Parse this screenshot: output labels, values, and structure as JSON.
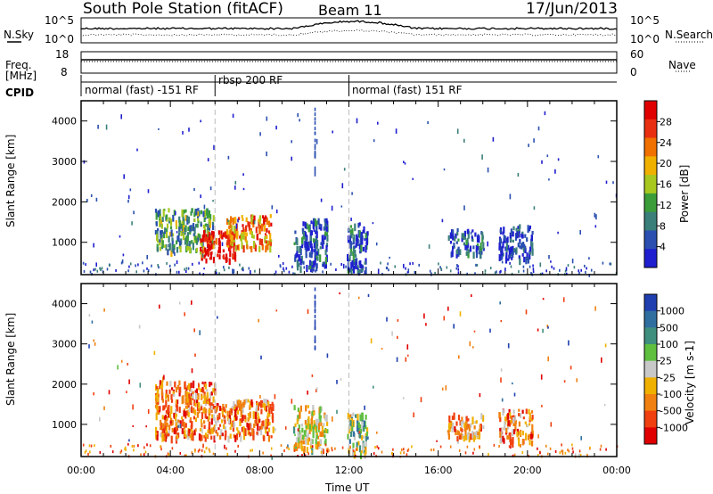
{
  "header": {
    "station": "South Pole Station (fitACF)",
    "beam": "Beam 11",
    "date": "17/Jun/2013"
  },
  "summary": {
    "nsky_label": "N.Sky",
    "nsearch_label": "N.Search",
    "freq_label": "Freq.",
    "freq_unit": "[MHz]",
    "nave_label": "Nave",
    "cpid_label": "CPID",
    "noise_ticks_left": [
      "10^5",
      "10^0"
    ],
    "noise_ticks_right": [
      "10^5",
      "10^0"
    ],
    "freq_ticks": [
      "18",
      "8"
    ],
    "nave_ticks": [
      "60",
      "0"
    ],
    "cpid_segments": [
      {
        "start": 0,
        "label": "normal (fast) -151 RF"
      },
      {
        "start": 6,
        "label": "rbsp 200 RF"
      },
      {
        "start": 12,
        "label": "normal (fast) 151 RF"
      }
    ]
  },
  "colors": {
    "power_scale": [
      "#1f1fd0",
      "#2a4fb0",
      "#3a7f7a",
      "#3a9d3a",
      "#a8c820",
      "#f0b000",
      "#f07000",
      "#e83010",
      "#e00000"
    ],
    "velocity_scale": [
      "#1f3fb0",
      "#2f6fa0",
      "#3f8f7f",
      "#5fbf3f",
      "#c8c8c8",
      "#f0b000",
      "#f08010",
      "#f04010",
      "#e00000"
    ]
  },
  "chart_data": [
    {
      "type": "heatmap",
      "name": "power",
      "ylabel": "Slant Range [km]",
      "xlabel": "Time UT",
      "x_ticks": [
        "00:00",
        "04:00",
        "08:00",
        "12:00",
        "16:00",
        "20:00",
        "00:00"
      ],
      "y_ticks": [
        1000,
        2000,
        3000,
        4000
      ],
      "ylim": [
        200,
        4500
      ],
      "xlim_hours": [
        0,
        24
      ],
      "colorbar_label": "Power [dB]",
      "colorbar_ticks": [
        "4",
        "8",
        "12",
        "16",
        "20",
        "24",
        "28"
      ],
      "scatter_regions": [
        {
          "x": [
            3.3,
            5.9
          ],
          "y": [
            800,
            1850
          ],
          "level": 0.35
        },
        {
          "x": [
            5.3,
            6.9
          ],
          "y": [
            600,
            1300
          ],
          "level": 0.95
        },
        {
          "x": [
            6.5,
            8.5
          ],
          "y": [
            900,
            1700
          ],
          "level": 0.7
        },
        {
          "x": [
            9.5,
            11.0
          ],
          "y": [
            400,
            1600
          ],
          "level": 0.15
        },
        {
          "x": [
            11.9,
            12.8
          ],
          "y": [
            300,
            1500
          ],
          "level": 0.2
        },
        {
          "x": [
            16.4,
            18.0
          ],
          "y": [
            750,
            1350
          ],
          "level": 0.15
        },
        {
          "x": [
            18.7,
            20.2
          ],
          "y": [
            600,
            1450
          ],
          "level": 0.12
        }
      ]
    },
    {
      "type": "heatmap",
      "name": "velocity",
      "ylabel": "Slant Range [km]",
      "xlabel": "Time UT",
      "x_ticks": [
        "00:00",
        "04:00",
        "08:00",
        "12:00",
        "16:00",
        "20:00",
        "00:00"
      ],
      "y_ticks": [
        1000,
        2000,
        3000,
        4000
      ],
      "ylim": [
        200,
        4500
      ],
      "xlim_hours": [
        0,
        24
      ],
      "colorbar_label": "Velocity [m s-1]",
      "colorbar_ticks": [
        "1000",
        "500",
        "100",
        "25",
        "-25",
        "-100",
        "-500",
        "-1000"
      ],
      "scatter_regions": [
        {
          "x": [
            3.3,
            6.0
          ],
          "y": [
            700,
            2100
          ],
          "level": 0.75
        },
        {
          "x": [
            6.0,
            8.6
          ],
          "y": [
            700,
            1650
          ],
          "level": 0.72
        },
        {
          "x": [
            9.5,
            11.0
          ],
          "y": [
            400,
            1500
          ],
          "level": 0.55
        },
        {
          "x": [
            11.9,
            12.8
          ],
          "y": [
            300,
            1300
          ],
          "level": 0.4
        },
        {
          "x": [
            16.4,
            18.0
          ],
          "y": [
            700,
            1300
          ],
          "level": 0.7
        },
        {
          "x": [
            18.7,
            20.2
          ],
          "y": [
            600,
            1400
          ],
          "level": 0.72
        }
      ]
    }
  ]
}
